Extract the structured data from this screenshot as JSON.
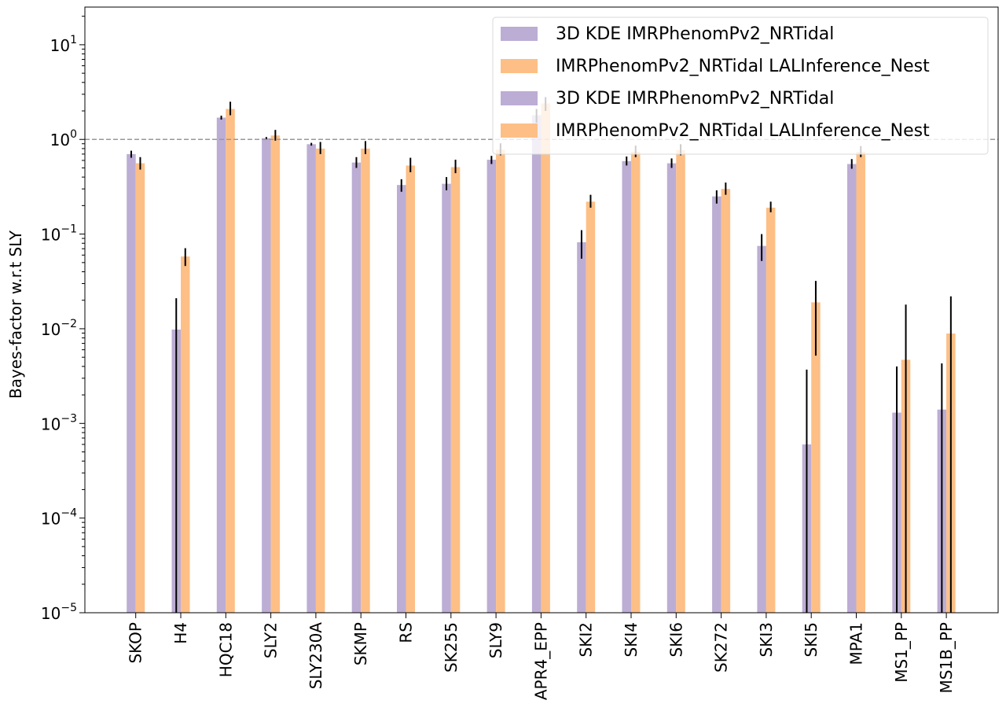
{
  "chart_data": {
    "type": "bar",
    "scale": "log",
    "ylabel": "Bayes-factor w.r.t SLY",
    "xlabel": "",
    "ylim": [
      1e-05,
      25
    ],
    "y_ticks": [
      {
        "value": 1e-05,
        "base": "10",
        "exp": "−5"
      },
      {
        "value": 0.0001,
        "base": "10",
        "exp": "−4"
      },
      {
        "value": 0.001,
        "base": "10",
        "exp": "−3"
      },
      {
        "value": 0.01,
        "base": "10",
        "exp": "−2"
      },
      {
        "value": 0.1,
        "base": "10",
        "exp": "−1"
      },
      {
        "value": 1,
        "base": "10",
        "exp": "0"
      },
      {
        "value": 10,
        "base": "10",
        "exp": "1"
      }
    ],
    "reference_line": {
      "value": 1,
      "style": "dashed",
      "color": "#999999"
    },
    "categories": [
      "SKOP",
      "H4",
      "HQC18",
      "SLY2",
      "SLY230A",
      "SKMP",
      "RS",
      "SK255",
      "SLY9",
      "APR4_EPP",
      "SKI2",
      "SKI4",
      "SKI6",
      "SK272",
      "SKI3",
      "SKI5",
      "MPA1",
      "MS1_PP",
      "MS1B_PP"
    ],
    "series": [
      {
        "color": "#bcadd4",
        "values": [
          0.7,
          0.0098,
          1.7,
          1.03,
          0.89,
          0.57,
          0.33,
          0.34,
          0.61,
          1.8,
          0.082,
          0.59,
          0.56,
          0.25,
          0.075,
          0.0006,
          0.55,
          0.0013,
          0.0014
        ],
        "err_low": [
          0.64,
          1e-05,
          1.62,
          1.0,
          0.86,
          0.5,
          0.28,
          0.29,
          0.55,
          1.5,
          0.055,
          0.53,
          0.5,
          0.21,
          0.052,
          1e-05,
          0.49,
          1e-05,
          1e-05
        ],
        "err_high": [
          0.76,
          0.021,
          1.78,
          1.06,
          0.92,
          0.65,
          0.38,
          0.4,
          0.67,
          2.1,
          0.11,
          0.66,
          0.63,
          0.29,
          0.1,
          0.0037,
          0.62,
          0.004,
          0.0043
        ]
      },
      {
        "color": "#fdbf86",
        "values": [
          0.56,
          0.058,
          2.1,
          1.1,
          0.8,
          0.8,
          0.53,
          0.51,
          0.78,
          2.4,
          0.22,
          0.74,
          0.77,
          0.3,
          0.19,
          0.019,
          0.74,
          0.0047,
          0.0089
        ],
        "err_low": [
          0.48,
          0.046,
          1.8,
          0.97,
          0.7,
          0.7,
          0.45,
          0.44,
          0.68,
          2.0,
          0.19,
          0.65,
          0.68,
          0.26,
          0.17,
          0.0052,
          0.65,
          1e-05,
          1e-05
        ],
        "err_high": [
          0.65,
          0.071,
          2.5,
          1.26,
          0.94,
          0.96,
          0.64,
          0.61,
          0.91,
          2.8,
          0.26,
          0.86,
          0.89,
          0.35,
          0.22,
          0.032,
          0.85,
          0.018,
          0.022
        ]
      }
    ],
    "legend": {
      "placement": "top-right",
      "entries": [
        {
          "label": "3D KDE IMRPhenomPv2_NRTidal",
          "color": "#bcadd4"
        },
        {
          "label": "IMRPhenomPv2_NRTidal LALInference_Nest",
          "color": "#fdbf86"
        },
        {
          "label": "3D KDE IMRPhenomPv2_NRTidal",
          "color": "#bcadd4"
        },
        {
          "label": "IMRPhenomPv2_NRTidal LALInference_Nest",
          "color": "#fdbf86"
        }
      ]
    }
  }
}
